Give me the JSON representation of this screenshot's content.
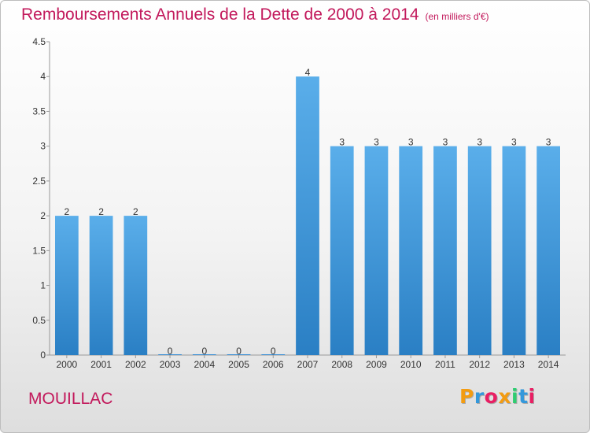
{
  "header": {
    "title": "Remboursements Annuels de la Dette de 2000 à 2014",
    "unit": "(en milliers d'€)"
  },
  "footer": {
    "commune": "MOUILLAC",
    "logo": [
      "P",
      "r",
      "o",
      "x",
      "i",
      "t",
      "i"
    ],
    "logo_colors": [
      "#f39c12",
      "#3498db",
      "#e91e63",
      "#f39c12",
      "#2ecc71",
      "#3498db",
      "#e91e63"
    ]
  },
  "chart_data": {
    "type": "bar",
    "categories": [
      "2000",
      "2001",
      "2002",
      "2003",
      "2004",
      "2005",
      "2006",
      "2007",
      "2008",
      "2009",
      "2010",
      "2011",
      "2012",
      "2013",
      "2014"
    ],
    "values": [
      2,
      2,
      2,
      0,
      0,
      0,
      0,
      4,
      3,
      3,
      3,
      3,
      3,
      3,
      3
    ],
    "data_labels": [
      "2",
      "2",
      "2",
      "0",
      "0",
      "0",
      "0",
      "4",
      "3",
      "3",
      "3",
      "3",
      "3",
      "3",
      "3"
    ],
    "yticks": [
      0,
      0.5,
      1,
      1.5,
      2,
      2.5,
      3,
      3.5,
      4,
      4.5
    ],
    "ytick_labels": [
      "0",
      "0.5",
      "1",
      "1.5",
      "2",
      "2.5",
      "3",
      "3.5",
      "4",
      "4.5"
    ],
    "ylim": [
      0,
      4.5
    ],
    "bar_color": "#3a8fd6",
    "grid": false
  }
}
